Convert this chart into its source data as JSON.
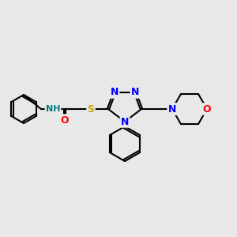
{
  "bg_color": "#e8e8e8",
  "bond_color": "#000000",
  "atom_colors": {
    "N": "#0000ff",
    "O": "#ff0000",
    "S": "#ccaa00",
    "H": "#008080",
    "C": "#000000"
  },
  "figsize": [
    3.0,
    3.0
  ],
  "dpi": 100
}
